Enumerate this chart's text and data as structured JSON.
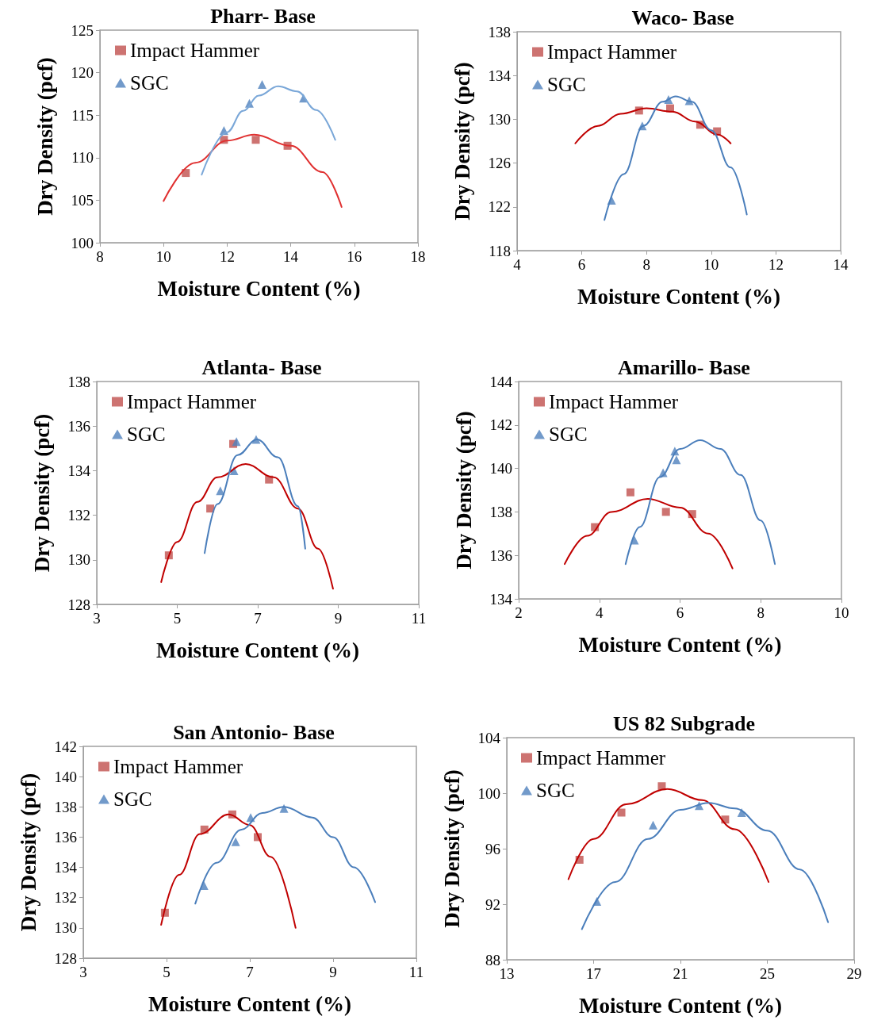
{
  "chart_data": [
    {
      "type": "scatter",
      "title": "Pharr- Base",
      "xlabel": "Moisture Content (%)",
      "ylabel": "Dry Density (pcf)",
      "xlim": [
        8,
        18
      ],
      "ylim": [
        100,
        125
      ],
      "xticks": [
        8,
        10,
        12,
        14,
        16,
        18
      ],
      "yticks": [
        100,
        105,
        110,
        115,
        120,
        125
      ],
      "legend": "top left",
      "series": [
        {
          "name": "Impact Hammer",
          "color": "#c0504d",
          "marker": "square",
          "x": [
            10.7,
            11.9,
            12.9,
            13.9
          ],
          "values": [
            108.2,
            112.1,
            112.1,
            111.4
          ]
        },
        {
          "name": "SGC",
          "color": "#4f81bd",
          "marker": "triangle",
          "x": [
            11.9,
            12.7,
            13.1,
            14.4
          ],
          "values": [
            113.2,
            116.4,
            118.6,
            117.0
          ]
        },
        {
          "type": "line",
          "color": "#e03030",
          "marker": "none",
          "x": [
            10.0,
            11.0,
            12.0,
            12.85,
            14.0,
            15.0,
            15.6
          ],
          "values": [
            104.9,
            109.4,
            112.0,
            112.7,
            111.4,
            108.3,
            104.2
          ]
        },
        {
          "type": "line",
          "color": "#7aa7d8",
          "marker": "none",
          "x": [
            11.2,
            12.0,
            12.5,
            13.0,
            13.6,
            14.2,
            14.8,
            15.4
          ],
          "values": [
            108.0,
            113.0,
            115.5,
            117.3,
            118.4,
            117.8,
            115.6,
            112.1
          ]
        }
      ]
    },
    {
      "type": "scatter",
      "title": "Waco- Base",
      "xlabel": "Moisture Content (%)",
      "ylabel": "Dry Density (pcf)",
      "xlim": [
        4,
        14
      ],
      "ylim": [
        118,
        138
      ],
      "xticks": [
        4,
        6,
        8,
        10,
        12,
        14
      ],
      "yticks": [
        118,
        122,
        126,
        130,
        134,
        138
      ],
      "legend": "top left",
      "series": [
        {
          "name": "Impact Hammer",
          "color": "#c0504d",
          "marker": "square",
          "x": [
            7.77,
            8.73,
            9.66,
            10.18
          ],
          "values": [
            130.8,
            131.0,
            129.5,
            128.9
          ]
        },
        {
          "name": "SGC",
          "color": "#4f81bd",
          "marker": "triangle",
          "x": [
            6.92,
            7.87,
            8.68,
            9.32
          ],
          "values": [
            122.6,
            129.4,
            131.8,
            131.7
          ]
        },
        {
          "type": "line",
          "color": "#c00000",
          "marker": "none",
          "x": [
            5.8,
            6.5,
            7.2,
            8.0,
            8.8,
            9.5,
            10.2,
            10.6
          ],
          "values": [
            127.8,
            129.4,
            130.5,
            131.0,
            130.7,
            129.8,
            128.6,
            127.8
          ]
        },
        {
          "type": "line",
          "color": "#4a7ebb",
          "marker": "none",
          "x": [
            6.7,
            7.3,
            7.9,
            8.5,
            8.9,
            9.4,
            10.0,
            10.6,
            11.1
          ],
          "values": [
            120.8,
            125.0,
            129.4,
            131.6,
            132.1,
            131.6,
            129.0,
            125.6,
            121.3
          ]
        }
      ]
    },
    {
      "type": "scatter",
      "title": "Atlanta- Base",
      "xlabel": "Moisture Content (%)",
      "ylabel": "Dry Density (pcf)",
      "xlim": [
        3,
        11
      ],
      "ylim": [
        128,
        138
      ],
      "xticks": [
        3,
        5,
        7,
        9,
        11
      ],
      "yticks": [
        128,
        130,
        132,
        134,
        136,
        138
      ],
      "legend": "top left",
      "series": [
        {
          "name": "Impact Hammer",
          "color": "#c0504d",
          "marker": "square",
          "x": [
            4.79,
            5.82,
            6.39,
            7.28
          ],
          "values": [
            130.2,
            132.3,
            135.2,
            133.6
          ]
        },
        {
          "name": "SGC",
          "color": "#4f81bd",
          "marker": "triangle",
          "x": [
            6.07,
            6.41,
            6.47,
            6.96
          ],
          "values": [
            133.1,
            134.0,
            135.3,
            135.4
          ]
        },
        {
          "type": "line",
          "color": "#c00000",
          "marker": "none",
          "x": [
            4.6,
            5.0,
            5.5,
            6.0,
            6.7,
            7.4,
            8.0,
            8.5,
            8.87
          ],
          "values": [
            129.0,
            130.8,
            132.6,
            133.7,
            134.3,
            133.7,
            132.3,
            130.5,
            128.7
          ]
        },
        {
          "type": "line",
          "color": "#4a7ebb",
          "marker": "none",
          "x": [
            5.68,
            6.0,
            6.5,
            6.98,
            7.5,
            8.0,
            8.18
          ],
          "values": [
            130.3,
            132.5,
            134.7,
            135.4,
            134.6,
            132.4,
            130.5
          ]
        }
      ]
    },
    {
      "type": "scatter",
      "title": "Amarillo- Base",
      "xlabel": "Moisture Content (%)",
      "ylabel": "Dry Density (pcf)",
      "xlim": [
        2,
        10
      ],
      "ylim": [
        134,
        144
      ],
      "xticks": [
        2,
        4,
        6,
        8,
        10
      ],
      "yticks": [
        134,
        136,
        138,
        140,
        142,
        144
      ],
      "legend": "top left",
      "series": [
        {
          "name": "Impact Hammer",
          "color": "#c0504d",
          "marker": "square",
          "x": [
            3.89,
            4.77,
            5.65,
            6.3
          ],
          "values": [
            137.3,
            138.9,
            138.0,
            137.9
          ]
        },
        {
          "name": "SGC",
          "color": "#4f81bd",
          "marker": "triangle",
          "x": [
            4.87,
            5.58,
            5.87,
            5.91
          ],
          "values": [
            136.7,
            139.8,
            140.8,
            140.4
          ]
        },
        {
          "type": "line",
          "color": "#c00000",
          "marker": "none",
          "x": [
            3.14,
            3.7,
            4.3,
            5.2,
            6.0,
            6.7,
            7.3
          ],
          "values": [
            135.6,
            136.9,
            138.0,
            138.6,
            138.2,
            137.0,
            135.4
          ]
        },
        {
          "type": "line",
          "color": "#4a7ebb",
          "marker": "none",
          "x": [
            4.65,
            5.0,
            5.5,
            6.0,
            6.5,
            7.0,
            7.5,
            8.0,
            8.35
          ],
          "values": [
            135.6,
            137.3,
            139.6,
            140.9,
            141.3,
            140.9,
            139.7,
            137.6,
            135.6
          ]
        }
      ]
    },
    {
      "type": "scatter",
      "title": "San Antonio- Base",
      "xlabel": "Moisture Content (%)",
      "ylabel": "Dry Density (pcf)",
      "xlim": [
        3,
        11
      ],
      "ylim": [
        128,
        142
      ],
      "xticks": [
        3,
        5,
        7,
        9,
        11
      ],
      "yticks": [
        128,
        130,
        132,
        134,
        136,
        138,
        140,
        142
      ],
      "legend": "top left",
      "series": [
        {
          "name": "Impact Hammer",
          "color": "#c0504d",
          "marker": "square",
          "x": [
            4.96,
            5.91,
            6.58,
            7.19
          ],
          "values": [
            131.0,
            136.5,
            137.5,
            136.0
          ]
        },
        {
          "name": "SGC",
          "color": "#4f81bd",
          "marker": "triangle",
          "x": [
            5.9,
            6.66,
            7.02,
            7.82
          ],
          "values": [
            132.8,
            135.7,
            137.3,
            137.9
          ]
        },
        {
          "type": "line",
          "color": "#c00000",
          "marker": "none",
          "x": [
            4.87,
            5.3,
            5.8,
            6.49,
            7.0,
            7.5,
            8.1
          ],
          "values": [
            130.2,
            133.5,
            136.2,
            137.5,
            136.8,
            134.7,
            130.0
          ]
        },
        {
          "type": "line",
          "color": "#4a7ebb",
          "marker": "none",
          "x": [
            5.69,
            6.2,
            6.8,
            7.3,
            7.82,
            8.5,
            9.0,
            9.5,
            10.01
          ],
          "values": [
            131.6,
            134.3,
            136.5,
            137.6,
            138.0,
            137.3,
            136.0,
            134.0,
            131.7
          ]
        }
      ]
    },
    {
      "type": "scatter",
      "title": "US 82 Subgrade",
      "xlabel": "Moisture Content (%)",
      "ylabel": "Dry Density (pcf)",
      "xlim": [
        13,
        29
      ],
      "ylim": [
        88,
        104
      ],
      "xticks": [
        13,
        17,
        21,
        25,
        29
      ],
      "yticks": [
        88,
        92,
        96,
        100,
        104
      ],
      "legend": "top left",
      "series": [
        {
          "name": "Impact Hammer",
          "color": "#c0504d",
          "marker": "square",
          "x": [
            16.35,
            18.28,
            20.14,
            23.06
          ],
          "values": [
            95.2,
            98.6,
            100.5,
            98.1
          ]
        },
        {
          "name": "SGC",
          "color": "#4f81bd",
          "marker": "triangle",
          "x": [
            17.15,
            19.74,
            21.86,
            23.82
          ],
          "values": [
            92.2,
            97.7,
            99.1,
            98.6
          ]
        },
        {
          "type": "line",
          "color": "#c00000",
          "marker": "none",
          "x": [
            15.84,
            17.0,
            18.5,
            20.4,
            22.0,
            23.5,
            25.06
          ],
          "values": [
            93.8,
            96.7,
            99.2,
            100.3,
            99.5,
            97.4,
            93.6
          ]
        },
        {
          "type": "line",
          "color": "#4a7ebb",
          "marker": "none",
          "x": [
            16.46,
            18.0,
            19.5,
            21.0,
            22.3,
            23.5,
            25.0,
            26.5,
            27.8
          ],
          "values": [
            90.2,
            93.6,
            96.7,
            98.8,
            99.3,
            98.9,
            97.3,
            94.5,
            90.7
          ]
        }
      ]
    }
  ]
}
